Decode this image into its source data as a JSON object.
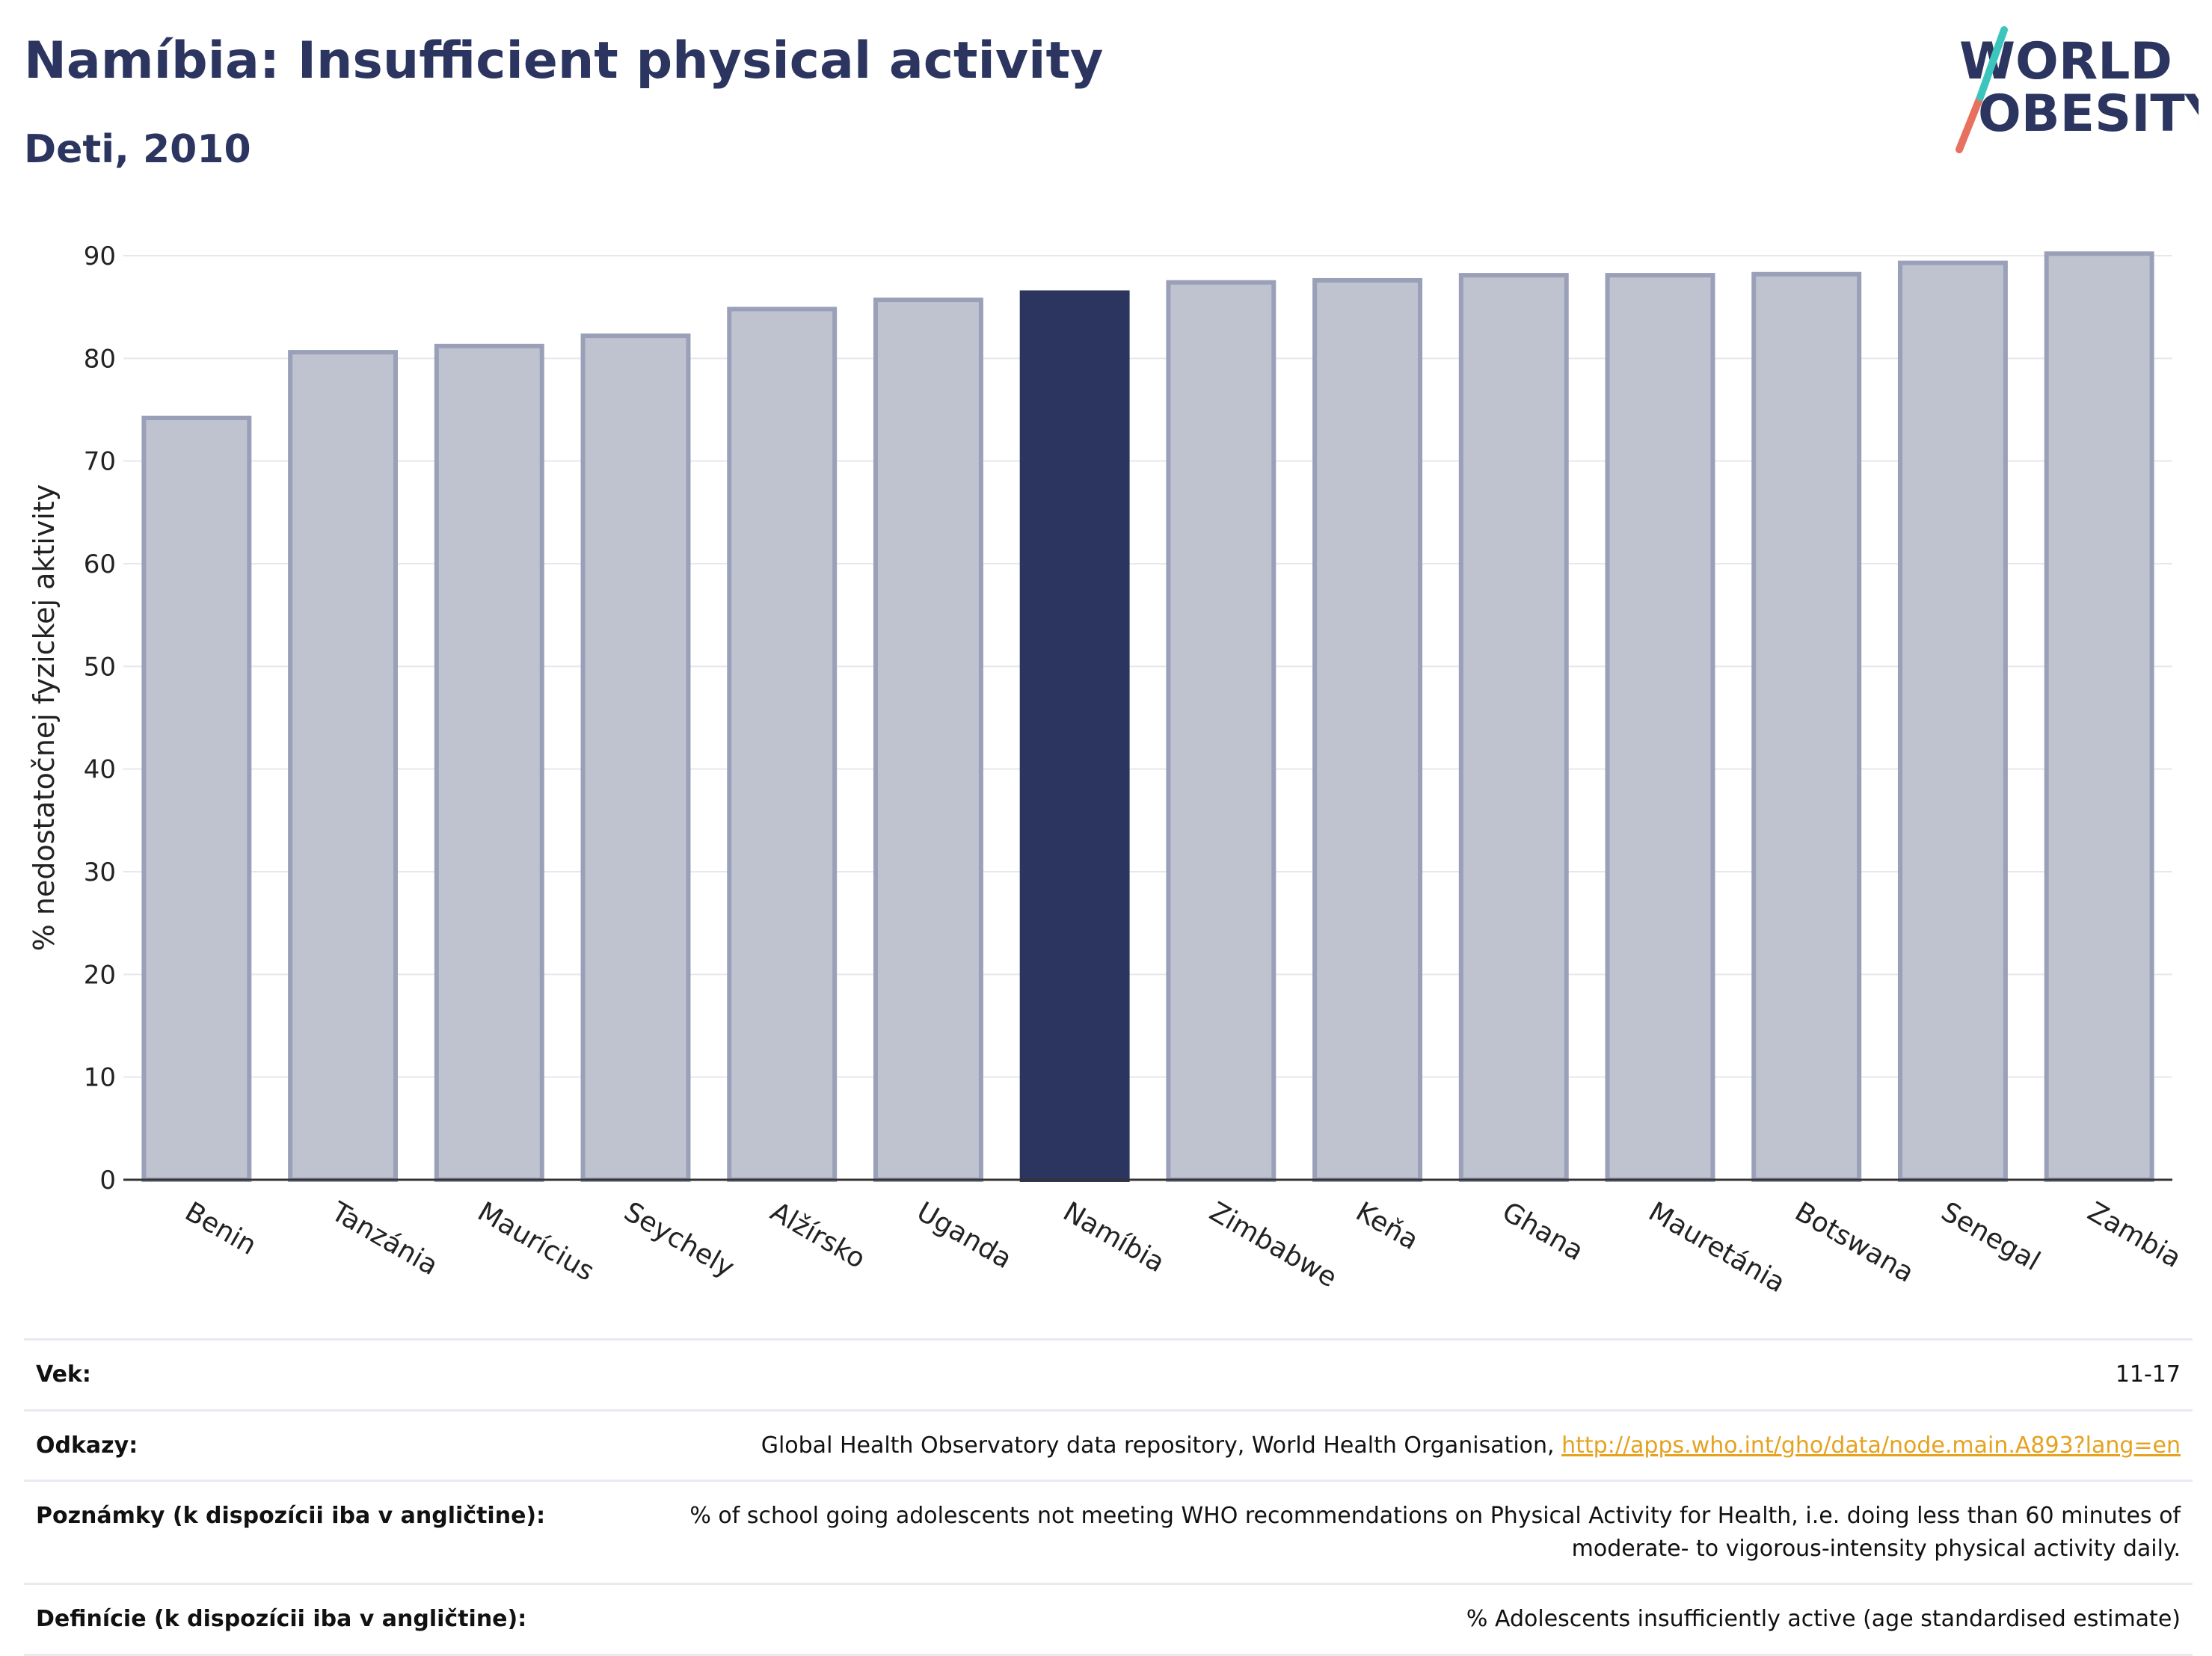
{
  "header": {
    "title": "Namíbia: Insufficient physical activity",
    "subtitle": "Deti, 2010"
  },
  "logo": {
    "line1": "WORLD",
    "line2": "OBESITY"
  },
  "chart_data": {
    "type": "bar",
    "categories": [
      "Benin",
      "Tanzánia",
      "Maurícius",
      "Seychely",
      "Alžírsko",
      "Uganda",
      "Namíbia",
      "Zimbabwe",
      "Keňa",
      "Ghana",
      "Mauretánia",
      "Botswana",
      "Senegal",
      "Zambia"
    ],
    "values": [
      74.2,
      80.6,
      81.2,
      82.2,
      84.8,
      85.7,
      86.4,
      87.4,
      87.6,
      88.1,
      88.1,
      88.2,
      89.3,
      90.2
    ],
    "highlight": "Namíbia",
    "ylabel": "% nedostatočnej fyzickej aktivity",
    "ylim": [
      0,
      90
    ],
    "yticks": [
      0,
      10,
      20,
      30,
      40,
      50,
      60,
      70,
      80,
      90
    ],
    "grid": true,
    "colors": {
      "bar": "#bfc3d0",
      "bar_edge": "#9aa0b8",
      "highlight": "#2b3560"
    }
  },
  "info": {
    "rows": [
      {
        "key": "Vek:",
        "value": "11-17"
      },
      {
        "key": "Odkazy:",
        "value": "Global Health Observatory data repository, World Health Organisation,",
        "link": "http://apps.who.int/gho/data/node.main.A893?lang=en"
      },
      {
        "key": "Poznámky (k dispozícii iba v angličtine):",
        "value": "% of school going adolescents not meeting WHO recommendations on Physical Activity for Health, i.e. doing less than 60 minutes of moderate- to vigorous-intensity physical activity daily."
      },
      {
        "key": "Definície (k dispozícii iba v angličtine):",
        "value": "% Adolescents insufficiently active (age standardised estimate)"
      }
    ]
  }
}
